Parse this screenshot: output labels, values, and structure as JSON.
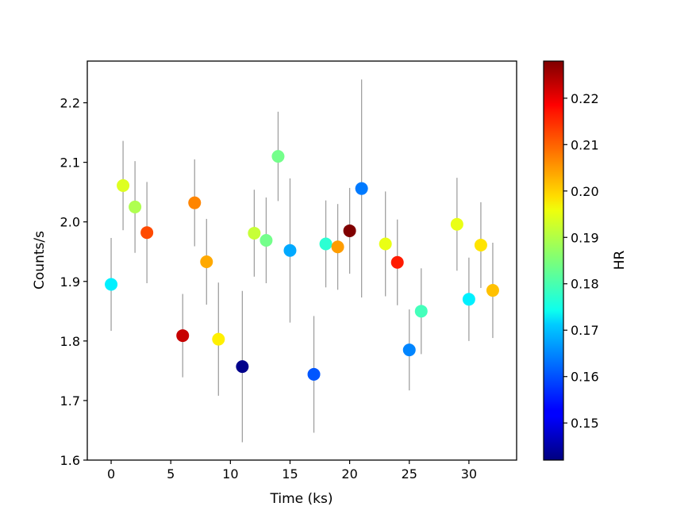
{
  "chart_data": {
    "type": "scatter",
    "xlabel": "Time (ks)",
    "ylabel": "Counts/s",
    "xlim": [
      -2,
      34
    ],
    "ylim": [
      1.6,
      2.27
    ],
    "x_ticks": [
      0,
      5,
      10,
      15,
      20,
      25,
      30
    ],
    "y_ticks": [
      1.6,
      1.7,
      1.8,
      1.9,
      2.0,
      2.1,
      2.2
    ],
    "grid": false,
    "legend": "none",
    "colorbar": {
      "label": "HR",
      "colormap": "jet",
      "range": [
        0.142,
        0.228
      ],
      "ticks": [
        0.15,
        0.16,
        0.17,
        0.18,
        0.19,
        0.2,
        0.21,
        0.22
      ]
    },
    "points": [
      {
        "x": 0,
        "y": 1.895,
        "err": 0.078,
        "hr": 0.173
      },
      {
        "x": 1,
        "y": 2.061,
        "err": 0.075,
        "hr": 0.193
      },
      {
        "x": 2,
        "y": 2.025,
        "err": 0.077,
        "hr": 0.189
      },
      {
        "x": 3,
        "y": 1.982,
        "err": 0.085,
        "hr": 0.211
      },
      {
        "x": 6,
        "y": 1.809,
        "err": 0.07,
        "hr": 0.222
      },
      {
        "x": 7,
        "y": 2.032,
        "err": 0.073,
        "hr": 0.206
      },
      {
        "x": 8,
        "y": 1.933,
        "err": 0.072,
        "hr": 0.203
      },
      {
        "x": 9,
        "y": 1.803,
        "err": 0.095,
        "hr": 0.197
      },
      {
        "x": 11,
        "y": 1.757,
        "err": 0.127,
        "hr": 0.143
      },
      {
        "x": 12,
        "y": 1.981,
        "err": 0.073,
        "hr": 0.191
      },
      {
        "x": 13,
        "y": 1.969,
        "err": 0.072,
        "hr": 0.184
      },
      {
        "x": 14,
        "y": 2.11,
        "err": 0.075,
        "hr": 0.184
      },
      {
        "x": 15,
        "y": 1.952,
        "err": 0.121,
        "hr": 0.167
      },
      {
        "x": 17,
        "y": 1.744,
        "err": 0.098,
        "hr": 0.16
      },
      {
        "x": 18,
        "y": 1.963,
        "err": 0.073,
        "hr": 0.178
      },
      {
        "x": 19,
        "y": 1.958,
        "err": 0.072,
        "hr": 0.204
      },
      {
        "x": 20,
        "y": 1.985,
        "err": 0.072,
        "hr": 0.228
      },
      {
        "x": 21,
        "y": 2.056,
        "err": 0.183,
        "hr": 0.163
      },
      {
        "x": 23,
        "y": 1.963,
        "err": 0.088,
        "hr": 0.194
      },
      {
        "x": 24,
        "y": 1.932,
        "err": 0.072,
        "hr": 0.215
      },
      {
        "x": 25,
        "y": 1.785,
        "err": 0.068,
        "hr": 0.164
      },
      {
        "x": 26,
        "y": 1.85,
        "err": 0.072,
        "hr": 0.18
      },
      {
        "x": 29,
        "y": 1.996,
        "err": 0.078,
        "hr": 0.194
      },
      {
        "x": 30,
        "y": 1.87,
        "err": 0.07,
        "hr": 0.173
      },
      {
        "x": 31,
        "y": 1.961,
        "err": 0.072,
        "hr": 0.198
      },
      {
        "x": 32,
        "y": 1.885,
        "err": 0.08,
        "hr": 0.201
      }
    ]
  }
}
